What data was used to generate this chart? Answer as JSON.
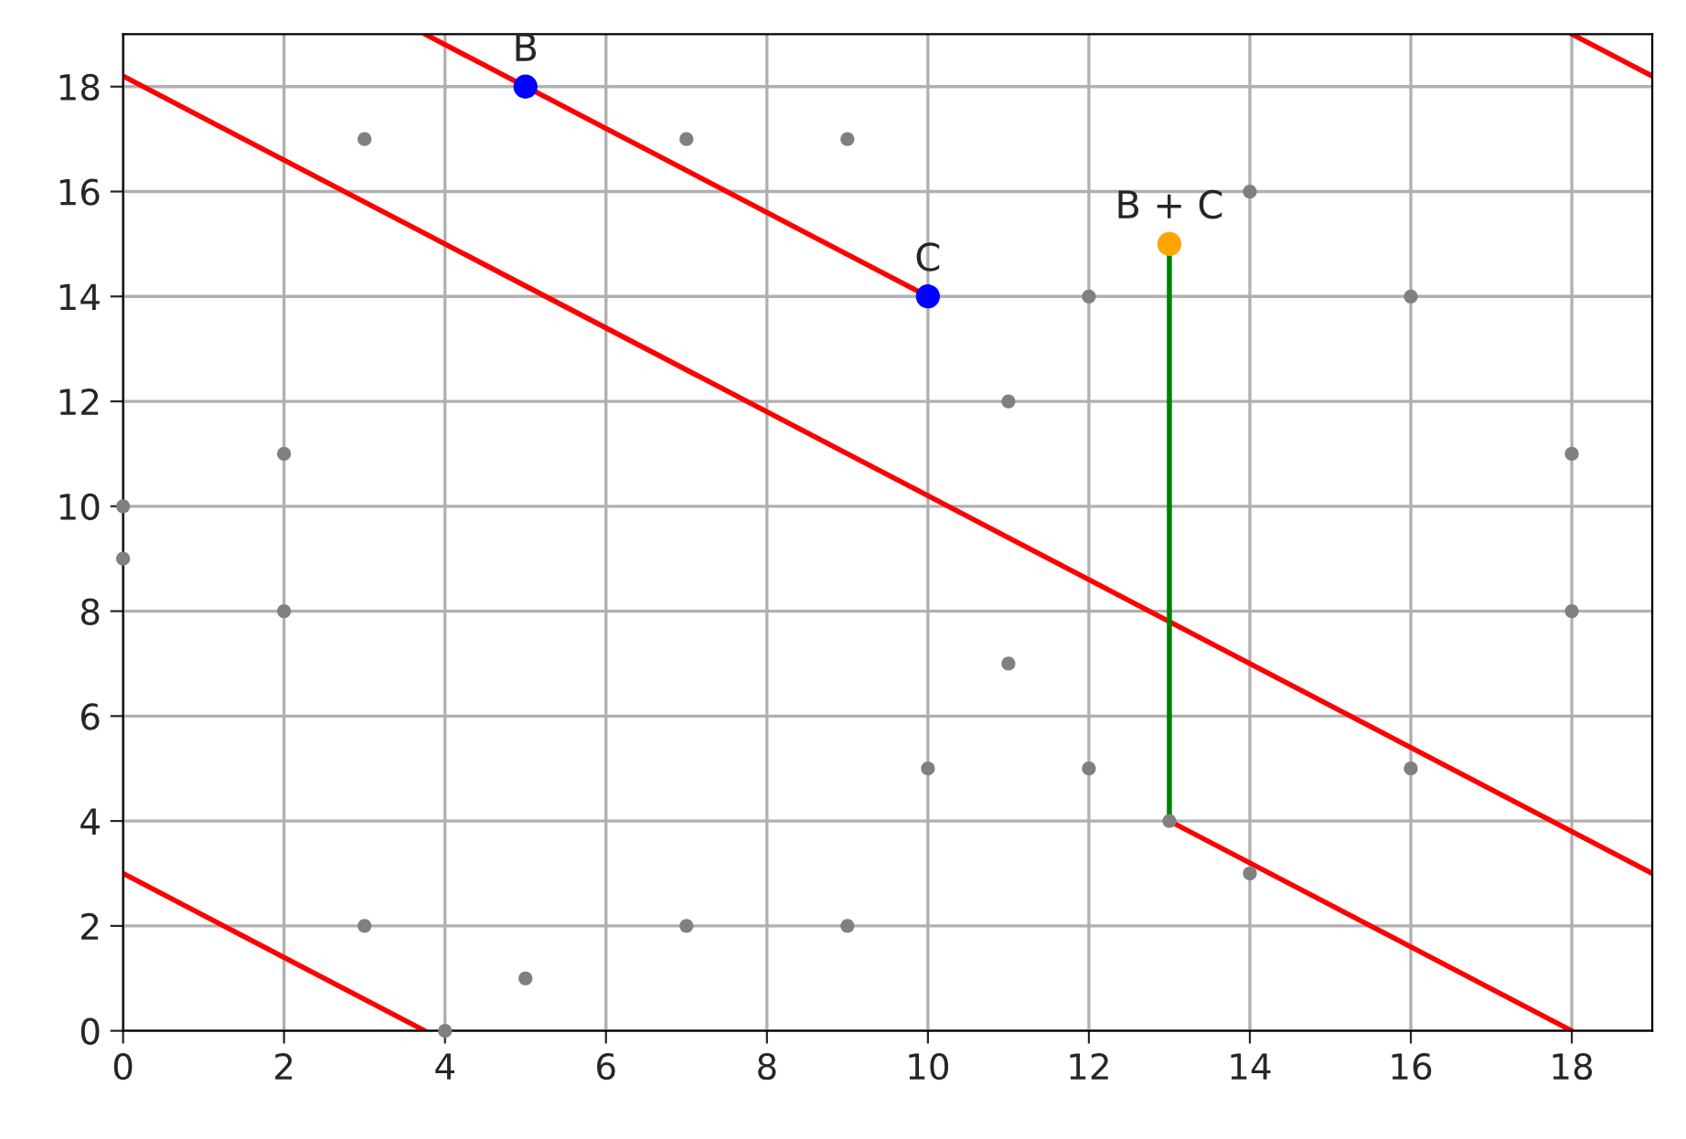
{
  "chart_data": {
    "type": "scatter",
    "xlim": [
      0,
      19
    ],
    "ylim": [
      0,
      19
    ],
    "xticks": [
      0,
      2,
      4,
      6,
      8,
      10,
      12,
      14,
      16,
      18
    ],
    "yticks": [
      0,
      2,
      4,
      6,
      8,
      10,
      12,
      14,
      16,
      18
    ],
    "grid": true,
    "marker": "circle",
    "series": [
      {
        "type": "line",
        "marker": "none",
        "color": "#ff0000",
        "x": [
          3.75,
          10
        ],
        "values": [
          19,
          14
        ]
      },
      {
        "type": "line",
        "marker": "none",
        "color": "#ff0000",
        "x": [
          0,
          19
        ],
        "values": [
          18.2,
          3.0
        ]
      },
      {
        "type": "line",
        "marker": "none",
        "color": "#ff0000",
        "x": [
          0,
          3.75
        ],
        "values": [
          3.0,
          0
        ]
      },
      {
        "type": "line",
        "marker": "none",
        "color": "#ff0000",
        "x": [
          13,
          18
        ],
        "values": [
          4,
          0
        ]
      },
      {
        "type": "line",
        "marker": "none",
        "color": "#ff0000",
        "x": [
          18,
          19
        ],
        "values": [
          19,
          18.2
        ]
      },
      {
        "type": "line",
        "marker": "none",
        "color": "#008000",
        "x": [
          13,
          13
        ],
        "values": [
          4,
          15
        ]
      },
      {
        "color": "#808080",
        "x": [
          0,
          0,
          2,
          2,
          3,
          3,
          4,
          5,
          7,
          7,
          9,
          9,
          10,
          11,
          11,
          12,
          12,
          13,
          14,
          14,
          16,
          16,
          18,
          18
        ],
        "values": [
          10,
          9,
          11,
          8,
          17,
          2,
          0,
          1,
          17,
          2,
          17,
          2,
          5,
          12,
          7,
          14,
          5,
          4,
          16,
          3,
          14,
          5,
          11,
          8
        ]
      },
      {
        "color": "#0000ff",
        "x": [
          5,
          10
        ],
        "values": [
          18,
          14
        ]
      },
      {
        "color": "#ffa500",
        "x": [
          13
        ],
        "values": [
          15
        ]
      }
    ],
    "annotations": [
      {
        "text": "B",
        "x": 5,
        "y": 18
      },
      {
        "text": "C",
        "x": 10,
        "y": 14
      },
      {
        "text": "B + C",
        "x": 13,
        "y": 15
      }
    ]
  }
}
